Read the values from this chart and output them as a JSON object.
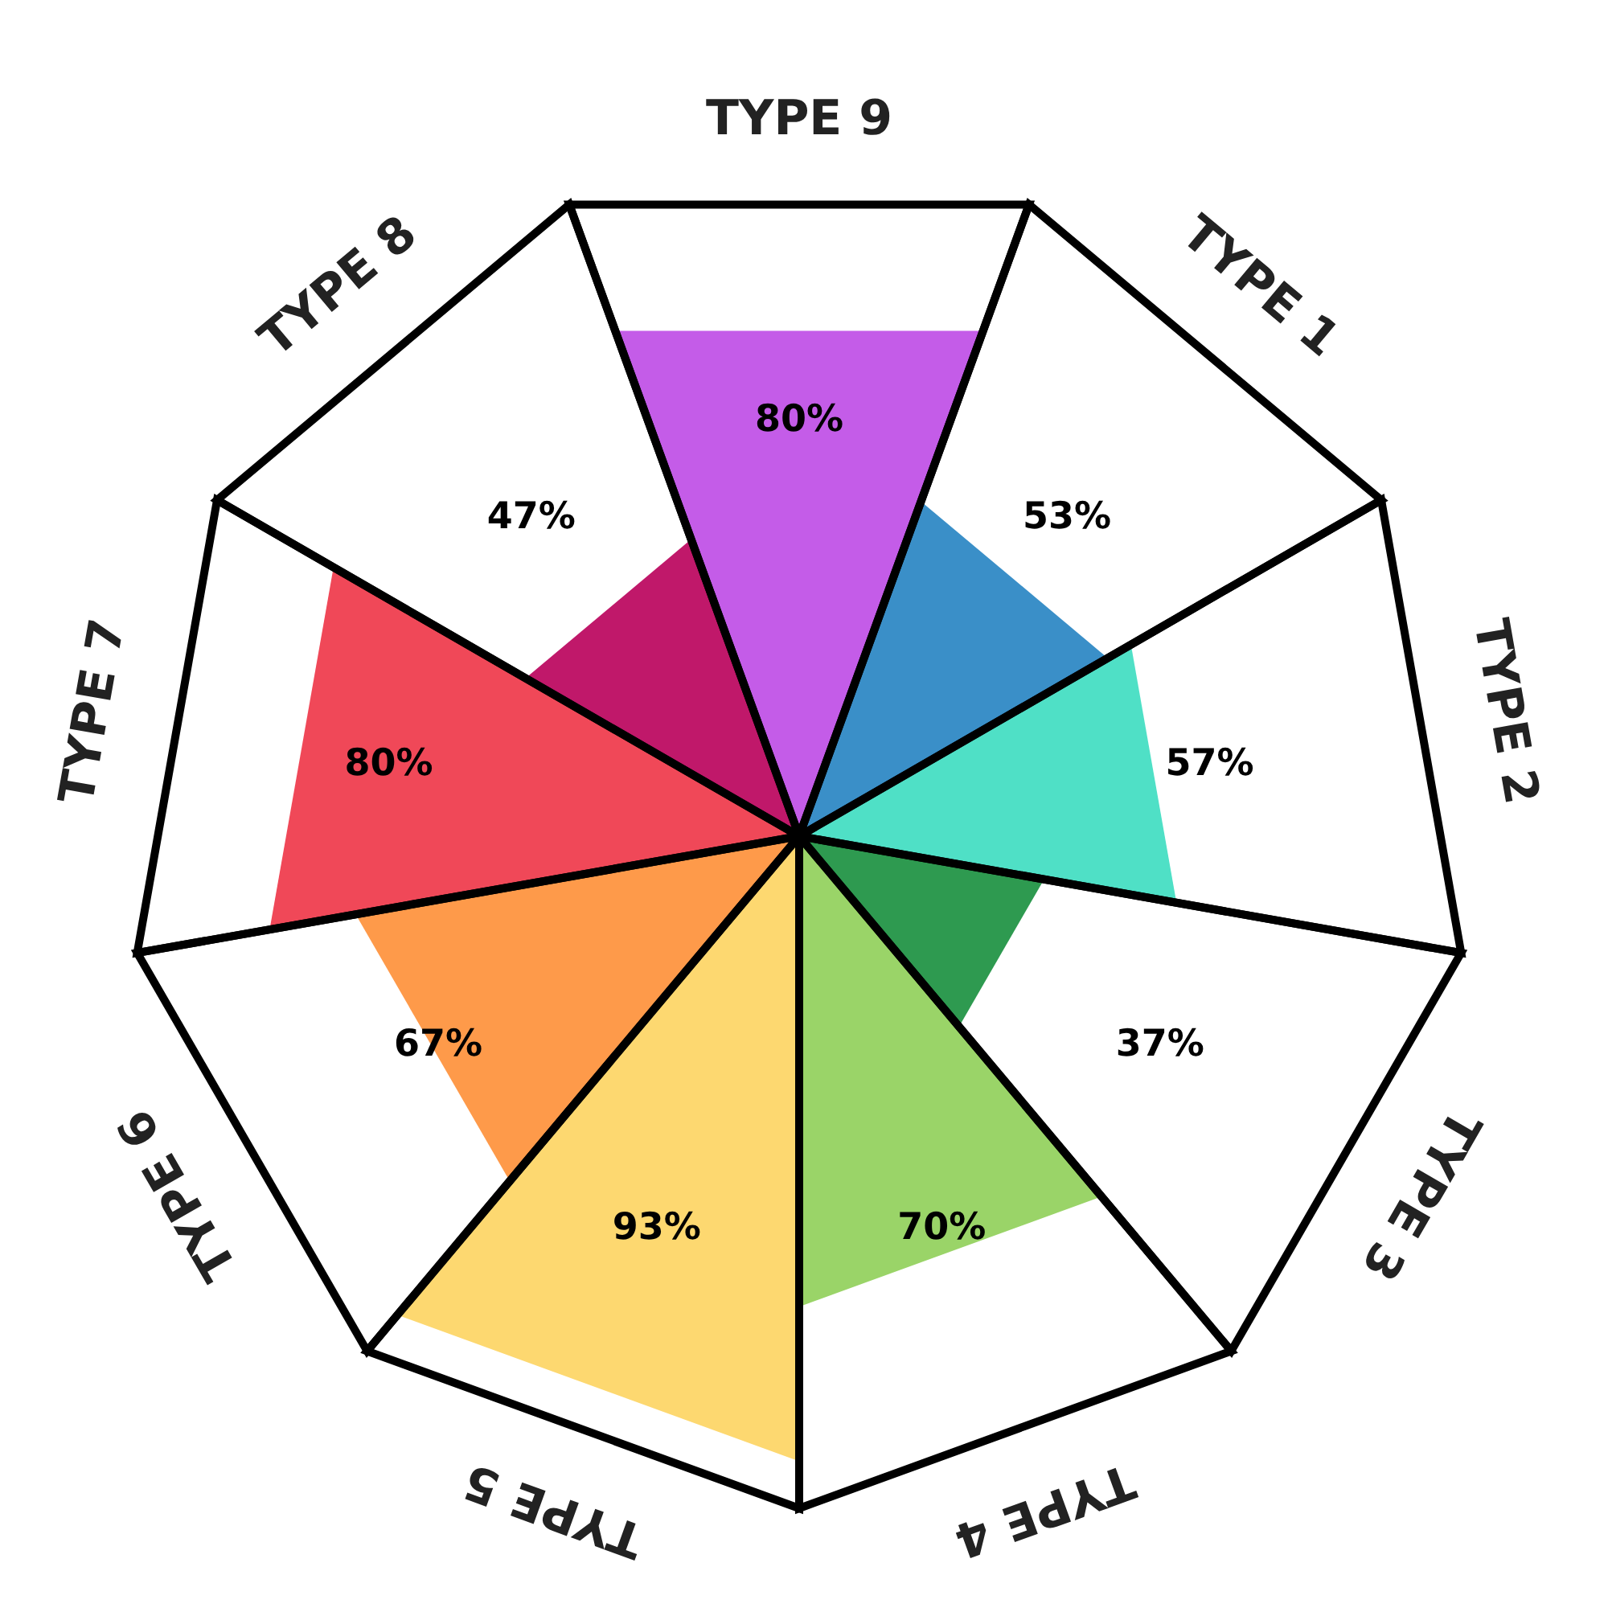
{
  "chart_data": {
    "type": "other",
    "categories": [
      "TYPE 9",
      "TYPE 1",
      "TYPE 2",
      "TYPE 3",
      "TYPE 4",
      "TYPE 5",
      "TYPE 6",
      "TYPE 7",
      "TYPE 8"
    ],
    "values": [
      80,
      53,
      57,
      37,
      70,
      93,
      67,
      80,
      47
    ],
    "value_labels": [
      "80%",
      "53%",
      "57%",
      "37%",
      "70%",
      "93%",
      "67%",
      "80%",
      "47%"
    ],
    "colors": [
      "#c45ce8",
      "#3a8fc8",
      "#4fe0c6",
      "#2e9a50",
      "#9ad468",
      "#fdd870",
      "#fe9a4a",
      "#f04858",
      "#c0186a"
    ]
  }
}
